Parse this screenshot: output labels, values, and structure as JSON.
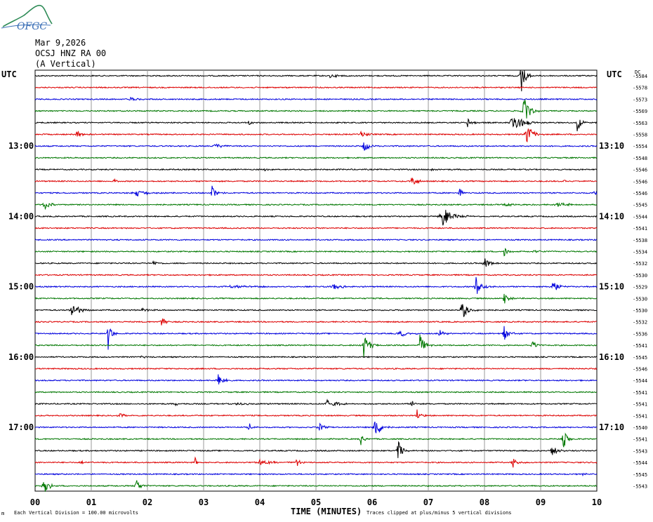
{
  "header": {
    "logo_text": "OFGC",
    "date": "Mar 9,2026",
    "station": "OCSJ HNZ RA 00",
    "component": "(A Vertical)",
    "utc_left": "UTC",
    "utc_right": "UTC",
    "dc_label": "DC"
  },
  "footer": {
    "division_note": "Each Vertical Division =  100.00 microvolts",
    "xaxis_title": "TIME (MINUTES)",
    "clip_note": "Traces clipped at plus/minus 5 vertical divisions",
    "corner_mark": "m"
  },
  "chart_data": {
    "type": "line",
    "title": "",
    "xlabel": "TIME (MINUTES)",
    "xlim": [
      0,
      10
    ],
    "x_ticks": [
      "00",
      "01",
      "02",
      "03",
      "04",
      "05",
      "06",
      "07",
      "08",
      "09",
      "10"
    ],
    "grid": true,
    "trace_minutes": 10,
    "left_hour_labels": [
      {
        "trace": 6,
        "label": "13:00"
      },
      {
        "trace": 12,
        "label": "14:00"
      },
      {
        "trace": 18,
        "label": "15:00"
      },
      {
        "trace": 24,
        "label": "16:00"
      },
      {
        "trace": 30,
        "label": "17:00"
      }
    ],
    "right_hour_labels": [
      {
        "trace": 6,
        "label": "13:10"
      },
      {
        "trace": 12,
        "label": "14:10"
      },
      {
        "trace": 18,
        "label": "15:10"
      },
      {
        "trace": 24,
        "label": "16:10"
      },
      {
        "trace": 30,
        "label": "17:10"
      }
    ],
    "trace_colors": [
      "#000000",
      "#dd0000",
      "#0000dd",
      "#007700"
    ],
    "dc_offsets": [
      "-5584",
      "-5578",
      "-5573",
      "-5569",
      "-5563",
      "-5558",
      "-5554",
      "-5548",
      "-5546",
      "-5546",
      "-5546",
      "-5545",
      "-5544",
      "-5541",
      "-5538",
      "-5534",
      "-5532",
      "-5530",
      "-5529",
      "-5530",
      "-5530",
      "-5532",
      "-5536",
      "-5541",
      "-5545",
      "-5546",
      "-5544",
      "-5541",
      "-5541",
      "-5541",
      "-5540",
      "-5541",
      "-5543",
      "-5544",
      "-5545",
      "-5543"
    ],
    "events": [
      {
        "trace": 0,
        "minute": 8.65,
        "amp": 5,
        "dur": 0.15
      },
      {
        "trace": 0,
        "minute": 5.25,
        "amp": 0.6,
        "dur": 0.25
      },
      {
        "trace": 2,
        "minute": 1.7,
        "amp": 0.5,
        "dur": 0.3
      },
      {
        "trace": 3,
        "minute": 8.7,
        "amp": 3.5,
        "dur": 0.2
      },
      {
        "trace": 4,
        "minute": 3.8,
        "amp": 0.8,
        "dur": 0.1
      },
      {
        "trace": 4,
        "minute": 7.7,
        "amp": 1.2,
        "dur": 0.2
      },
      {
        "trace": 4,
        "minute": 8.5,
        "amp": 2.5,
        "dur": 0.35
      },
      {
        "trace": 4,
        "minute": 9.65,
        "amp": 3.5,
        "dur": 0.1
      },
      {
        "trace": 5,
        "minute": 0.75,
        "amp": 1.2,
        "dur": 0.15
      },
      {
        "trace": 5,
        "minute": 5.8,
        "amp": 0.8,
        "dur": 0.2
      },
      {
        "trace": 5,
        "minute": 8.75,
        "amp": 3,
        "dur": 0.2
      },
      {
        "trace": 6,
        "minute": 3.2,
        "amp": 0.8,
        "dur": 0.25
      },
      {
        "trace": 6,
        "minute": 5.85,
        "amp": 2,
        "dur": 0.15
      },
      {
        "trace": 8,
        "minute": 4.1,
        "amp": 0.5,
        "dur": 0.3
      },
      {
        "trace": 8,
        "minute": 7.05,
        "amp": 0.5,
        "dur": 0.1
      },
      {
        "trace": 9,
        "minute": 1.4,
        "amp": 0.7,
        "dur": 0.1
      },
      {
        "trace": 9,
        "minute": 6.7,
        "amp": 2,
        "dur": 0.15
      },
      {
        "trace": 9,
        "minute": 9.4,
        "amp": 0.4,
        "dur": 0.1
      },
      {
        "trace": 10,
        "minute": 1.8,
        "amp": 0.8,
        "dur": 0.4
      },
      {
        "trace": 10,
        "minute": 3.15,
        "amp": 2,
        "dur": 0.15
      },
      {
        "trace": 10,
        "minute": 7.55,
        "amp": 1.5,
        "dur": 0.1
      },
      {
        "trace": 10,
        "minute": 9.95,
        "amp": 0.7,
        "dur": 0.1
      },
      {
        "trace": 11,
        "minute": 0.15,
        "amp": 1.5,
        "dur": 0.2
      },
      {
        "trace": 11,
        "minute": 8.4,
        "amp": 0.5,
        "dur": 0.3
      },
      {
        "trace": 11,
        "minute": 9.3,
        "amp": 0.5,
        "dur": 0.5
      },
      {
        "trace": 12,
        "minute": 7.25,
        "amp": 2.5,
        "dur": 0.35
      },
      {
        "trace": 15,
        "minute": 8.35,
        "amp": 1.3,
        "dur": 0.15
      },
      {
        "trace": 15,
        "minute": 8.9,
        "amp": 0.3,
        "dur": 0.4
      },
      {
        "trace": 16,
        "minute": 2.1,
        "amp": 0.5,
        "dur": 0.2
      },
      {
        "trace": 16,
        "minute": 8.0,
        "amp": 1.5,
        "dur": 0.2
      },
      {
        "trace": 18,
        "minute": 3.5,
        "amp": 0.3,
        "dur": 1.0
      },
      {
        "trace": 18,
        "minute": 5.3,
        "amp": 0.8,
        "dur": 0.3
      },
      {
        "trace": 18,
        "minute": 7.85,
        "amp": 2.5,
        "dur": 0.2
      },
      {
        "trace": 18,
        "minute": 9.2,
        "amp": 2,
        "dur": 0.2
      },
      {
        "trace": 19,
        "minute": 8.35,
        "amp": 1.5,
        "dur": 0.15
      },
      {
        "trace": 20,
        "minute": 0.65,
        "amp": 2,
        "dur": 0.25
      },
      {
        "trace": 20,
        "minute": 1.9,
        "amp": 0.5,
        "dur": 0.2
      },
      {
        "trace": 20,
        "minute": 7.6,
        "amp": 2.5,
        "dur": 0.2
      },
      {
        "trace": 21,
        "minute": 2.25,
        "amp": 2,
        "dur": 0.12
      },
      {
        "trace": 22,
        "minute": 1.3,
        "amp": 4.5,
        "dur": 0.1
      },
      {
        "trace": 22,
        "minute": 6.5,
        "amp": 0.7,
        "dur": 0.3
      },
      {
        "trace": 22,
        "minute": 7.2,
        "amp": 1.5,
        "dur": 0.15
      },
      {
        "trace": 22,
        "minute": 8.35,
        "amp": 2,
        "dur": 0.15
      },
      {
        "trace": 23,
        "minute": 5.85,
        "amp": 3,
        "dur": 0.2
      },
      {
        "trace": 23,
        "minute": 6.85,
        "amp": 3,
        "dur": 0.15
      },
      {
        "trace": 23,
        "minute": 8.85,
        "amp": 1.2,
        "dur": 0.15
      },
      {
        "trace": 24,
        "minute": 1.9,
        "amp": 0.3,
        "dur": 0.2
      },
      {
        "trace": 26,
        "minute": 3.25,
        "amp": 2.5,
        "dur": 0.15
      },
      {
        "trace": 28,
        "minute": 2.5,
        "amp": 0.5,
        "dur": 0.1
      },
      {
        "trace": 28,
        "minute": 3.6,
        "amp": 0.4,
        "dur": 0.3
      },
      {
        "trace": 28,
        "minute": 5.2,
        "amp": 1.2,
        "dur": 0.3
      },
      {
        "trace": 28,
        "minute": 6.7,
        "amp": 1.5,
        "dur": 0.1
      },
      {
        "trace": 29,
        "minute": 1.5,
        "amp": 0.5,
        "dur": 0.25
      },
      {
        "trace": 29,
        "minute": 6.8,
        "amp": 1.5,
        "dur": 0.12
      },
      {
        "trace": 30,
        "minute": 3.8,
        "amp": 1.2,
        "dur": 0.12
      },
      {
        "trace": 30,
        "minute": 5.05,
        "amp": 1.2,
        "dur": 0.2
      },
      {
        "trace": 30,
        "minute": 6.05,
        "amp": 3,
        "dur": 0.2
      },
      {
        "trace": 31,
        "minute": 5.8,
        "amp": 1.5,
        "dur": 0.12
      },
      {
        "trace": 31,
        "minute": 9.4,
        "amp": 2.5,
        "dur": 0.15
      },
      {
        "trace": 32,
        "minute": 6.45,
        "amp": 3,
        "dur": 0.15
      },
      {
        "trace": 32,
        "minute": 9.2,
        "amp": 1.5,
        "dur": 0.2
      },
      {
        "trace": 33,
        "minute": 0.8,
        "amp": 0.3,
        "dur": 0.3
      },
      {
        "trace": 33,
        "minute": 2.85,
        "amp": 1.5,
        "dur": 0.1
      },
      {
        "trace": 33,
        "minute": 4.0,
        "amp": 0.7,
        "dur": 0.4
      },
      {
        "trace": 33,
        "minute": 4.65,
        "amp": 1.5,
        "dur": 0.1
      },
      {
        "trace": 33,
        "minute": 8.5,
        "amp": 1.5,
        "dur": 0.15
      },
      {
        "trace": 34,
        "minute": 9.75,
        "amp": 0.3,
        "dur": 0.2
      },
      {
        "trace": 35,
        "minute": 0.15,
        "amp": 3,
        "dur": 0.15
      },
      {
        "trace": 35,
        "minute": 1.8,
        "amp": 2,
        "dur": 0.15
      }
    ]
  }
}
